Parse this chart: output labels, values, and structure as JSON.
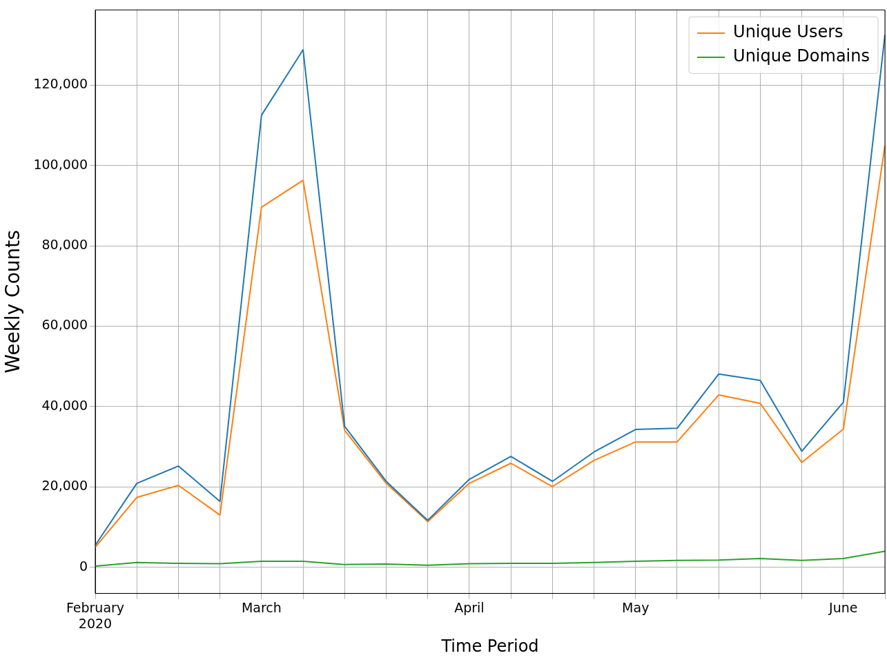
{
  "chart_data": {
    "type": "line",
    "xlabel": "Time Period",
    "ylabel": "Weekly Counts",
    "categories": [
      "February 2020",
      null,
      null,
      null,
      "March",
      null,
      null,
      null,
      null,
      "April",
      null,
      null,
      null,
      "May",
      null,
      null,
      null,
      null,
      "June",
      null
    ],
    "series": [
      {
        "color": "#1f77b4",
        "values": [
          5500,
          20900,
          25200,
          16400,
          112500,
          128800,
          35100,
          21400,
          11700,
          21900,
          27600,
          21400,
          28700,
          34300,
          34600,
          48100,
          46500,
          28900,
          41100,
          132500
        ]
      },
      {
        "name": "Unique Users",
        "color": "#ff7f0e",
        "values": [
          5000,
          17400,
          20400,
          13000,
          89600,
          96300,
          34100,
          20900,
          11400,
          20900,
          25900,
          20100,
          26600,
          31200,
          31200,
          42900,
          40800,
          26100,
          34400,
          105000
        ]
      },
      {
        "name": "Unique Domains",
        "color": "#2ca02c",
        "values": [
          300,
          1200,
          1000,
          900,
          1500,
          1500,
          700,
          800,
          500,
          900,
          1000,
          1000,
          1200,
          1500,
          1700,
          1800,
          2200,
          1700,
          2200,
          4000
        ]
      }
    ],
    "ylim": [
      -6500,
      138700
    ],
    "yticks": [
      {
        "value": 0,
        "label": "0"
      },
      {
        "value": 20000,
        "label": "20,000"
      },
      {
        "value": 40000,
        "label": "40,000"
      },
      {
        "value": 60000,
        "label": "60,000"
      },
      {
        "value": 80000,
        "label": "80,000"
      },
      {
        "value": 100000,
        "label": "100,000"
      },
      {
        "value": 120000,
        "label": "120,000"
      }
    ],
    "grid": true,
    "legend": "top right",
    "marker": "none",
    "line_style": "solid"
  }
}
